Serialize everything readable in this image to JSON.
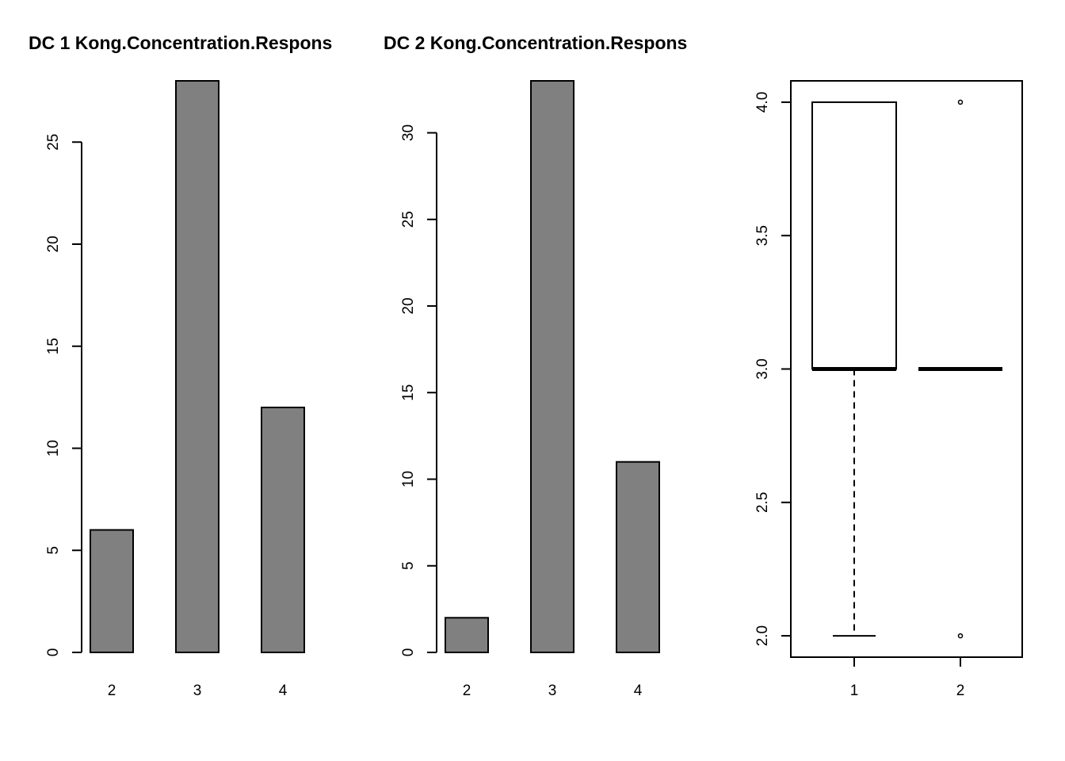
{
  "chart_data": [
    {
      "type": "bar",
      "title": "DC 1 Kong.Concentration.Respons",
      "categories": [
        "2",
        "3",
        "4"
      ],
      "values": [
        6,
        28,
        12
      ],
      "ylim": [
        0,
        28
      ],
      "yticks": [
        0,
        5,
        10,
        15,
        20,
        25
      ],
      "bar_color": "#808080"
    },
    {
      "type": "bar",
      "title": "DC 2 Kong.Concentration.Respons",
      "categories": [
        "2",
        "3",
        "4"
      ],
      "values": [
        2,
        33,
        11
      ],
      "ylim": [
        0,
        33
      ],
      "yticks": [
        0,
        5,
        10,
        15,
        20,
        25,
        30
      ],
      "bar_color": "#808080"
    },
    {
      "type": "boxplot",
      "categories": [
        "1",
        "2"
      ],
      "boxes": [
        {
          "min": 2,
          "q1": 3,
          "median": 3,
          "q3": 4,
          "max": 4,
          "outliers": []
        },
        {
          "min": 3,
          "q1": 3,
          "median": 3,
          "q3": 3,
          "max": 3,
          "outliers": [
            4,
            2
          ]
        }
      ],
      "ylim": [
        1.92,
        4.08
      ],
      "yticks": [
        "2.0",
        "2.5",
        "3.0",
        "3.5",
        "4.0"
      ]
    }
  ]
}
